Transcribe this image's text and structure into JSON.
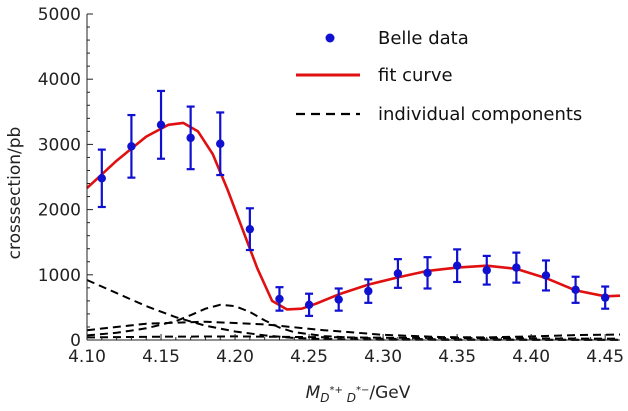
{
  "chart_data": {
    "type": "scatter",
    "title": "",
    "xlabel_parts": {
      "symbol": "M",
      "sub_main": "D",
      "sub_sup1": "*+",
      "sub_mid": " D",
      "sub_sup2": "*−",
      "unit": "/GeV"
    },
    "ylabel": "crosssection/pb",
    "xlim": [
      4.1,
      4.46
    ],
    "ylim": [
      0,
      5000
    ],
    "x_ticks": [
      "4.10",
      "4.15",
      "4.20",
      "4.25",
      "4.30",
      "4.35",
      "4.40",
      "4.45"
    ],
    "y_ticks": [
      "0",
      "1000",
      "2000",
      "3000",
      "4000",
      "5000"
    ],
    "legend": {
      "position": "top-right",
      "entries": [
        "Belle data",
        "fit curve",
        "individual components"
      ]
    },
    "series": [
      {
        "name": "Belle data",
        "style": "points-with-error-bars",
        "color": "#1010d0",
        "points": [
          {
            "x": 4.11,
            "y": 2480,
            "err": 440
          },
          {
            "x": 4.13,
            "y": 2970,
            "err": 480
          },
          {
            "x": 4.15,
            "y": 3300,
            "err": 520
          },
          {
            "x": 4.17,
            "y": 3100,
            "err": 480
          },
          {
            "x": 4.19,
            "y": 3010,
            "err": 480
          },
          {
            "x": 4.21,
            "y": 1700,
            "err": 320
          },
          {
            "x": 4.23,
            "y": 630,
            "err": 180
          },
          {
            "x": 4.25,
            "y": 540,
            "err": 170
          },
          {
            "x": 4.27,
            "y": 620,
            "err": 170
          },
          {
            "x": 4.29,
            "y": 750,
            "err": 180
          },
          {
            "x": 4.31,
            "y": 1020,
            "err": 220
          },
          {
            "x": 4.33,
            "y": 1030,
            "err": 240
          },
          {
            "x": 4.35,
            "y": 1140,
            "err": 250
          },
          {
            "x": 4.37,
            "y": 1070,
            "err": 220
          },
          {
            "x": 4.39,
            "y": 1110,
            "err": 230
          },
          {
            "x": 4.41,
            "y": 990,
            "err": 230
          },
          {
            "x": 4.43,
            "y": 770,
            "err": 200
          },
          {
            "x": 4.45,
            "y": 650,
            "err": 170
          }
        ]
      },
      {
        "name": "fit curve",
        "style": "solid-line",
        "color": "#e01010",
        "x": [
          4.1,
          4.12,
          4.14,
          4.155,
          4.165,
          4.175,
          4.185,
          4.195,
          4.205,
          4.215,
          4.225,
          4.235,
          4.245,
          4.255,
          4.27,
          4.29,
          4.31,
          4.33,
          4.35,
          4.37,
          4.39,
          4.41,
          4.43,
          4.45,
          4.46
        ],
        "y": [
          2330,
          2750,
          3120,
          3300,
          3330,
          3200,
          2850,
          2300,
          1700,
          1100,
          600,
          470,
          480,
          560,
          700,
          850,
          960,
          1060,
          1110,
          1140,
          1090,
          950,
          760,
          670,
          680
        ]
      },
      {
        "name": "individual components",
        "style": "dashed-line",
        "color": "#000000",
        "lines": [
          {
            "x": [
              4.1,
              4.12,
              4.14,
              4.16,
              4.18,
              4.2,
              4.22,
              4.24,
              4.26,
              4.28,
              4.3,
              4.33,
              4.36,
              4.4,
              4.43,
              4.46
            ],
            "y": [
              920,
              720,
              520,
              350,
              220,
              130,
              70,
              30,
              15,
              8,
              5,
              3,
              2,
              2,
              1,
              1
            ]
          },
          {
            "x": [
              4.1,
              4.12,
              4.14,
              4.16,
              4.17,
              4.18,
              4.19,
              4.2,
              4.21,
              4.22,
              4.23,
              4.24,
              4.26,
              4.28,
              4.3,
              4.34,
              4.4,
              4.46
            ],
            "y": [
              70,
              110,
              180,
              290,
              380,
              480,
              540,
              520,
              430,
              300,
              190,
              120,
              60,
              35,
              20,
              10,
              5,
              3
            ],
            "note": ""
          },
          {
            "x": [
              4.1,
              4.14,
              4.18,
              4.22,
              4.26,
              4.3,
              4.34,
              4.37,
              4.4,
              4.43,
              4.46
            ],
            "y": [
              150,
              250,
              280,
              240,
              150,
              80,
              45,
              40,
              55,
              75,
              85
            ]
          },
          {
            "x": [
              4.1,
              4.15,
              4.2,
              4.25,
              4.3,
              4.35,
              4.4,
              4.46
            ],
            "y": [
              40,
              50,
              55,
              45,
              35,
              30,
              25,
              20
            ]
          }
        ]
      }
    ]
  }
}
